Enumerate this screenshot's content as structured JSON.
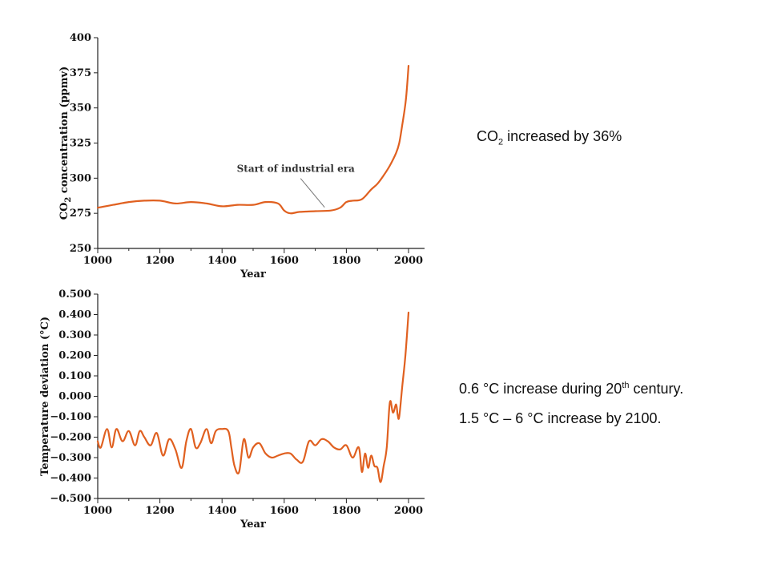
{
  "chart_data": [
    {
      "type": "line",
      "xlabel": "Year",
      "ylabel_main": "CO",
      "ylabel_sub": "2",
      "ylabel_rest": " concentration (ppmv)",
      "xlim": [
        1000,
        2000
      ],
      "ylim": [
        250,
        400
      ],
      "x_ticks": [
        1000,
        1200,
        1400,
        1600,
        1800,
        2000
      ],
      "y_ticks": [
        250,
        275,
        300,
        325,
        350,
        375,
        400
      ],
      "annotation": {
        "text": "Start of industrial era",
        "x": 1730,
        "y": 277
      },
      "series": [
        {
          "x": [
            1000,
            1050,
            1100,
            1150,
            1200,
            1250,
            1300,
            1350,
            1400,
            1450,
            1500,
            1540,
            1580,
            1600,
            1620,
            1650,
            1700,
            1750,
            1780,
            1800,
            1820,
            1850,
            1880,
            1900,
            1920,
            1940,
            1960,
            1970,
            1980,
            1990,
            1995,
            2000
          ],
          "y": [
            279,
            281,
            283,
            284,
            284,
            282,
            283,
            282,
            280,
            281,
            281,
            283,
            282,
            277,
            275,
            276,
            276.5,
            277,
            279,
            283,
            284,
            285,
            292,
            296,
            302,
            309,
            318,
            325,
            338,
            353,
            365,
            380
          ]
        }
      ]
    },
    {
      "type": "line",
      "xlabel": "Year",
      "ylabel": "Temperature deviation (°C)",
      "xlim": [
        1000,
        2000
      ],
      "ylim": [
        -0.5,
        0.5
      ],
      "x_ticks": [
        1000,
        1200,
        1400,
        1600,
        1800,
        2000
      ],
      "y_ticks": [
        0.5,
        0.4,
        0.3,
        0.2,
        0.1,
        0.0,
        -0.1,
        -0.2,
        -0.3,
        -0.4,
        -0.5
      ],
      "y_tick_labels": [
        "0.500",
        "0.400",
        "0.300",
        "0.200",
        "0.100",
        "0.000",
        "−0.100",
        "−0.200",
        "−0.300",
        "−0.400",
        "−0.500"
      ],
      "series": [
        {
          "x": [
            1000,
            1010,
            1030,
            1045,
            1060,
            1080,
            1100,
            1120,
            1135,
            1150,
            1170,
            1190,
            1210,
            1230,
            1250,
            1270,
            1285,
            1300,
            1315,
            1330,
            1350,
            1365,
            1380,
            1400,
            1420,
            1430,
            1440,
            1455,
            1470,
            1485,
            1500,
            1520,
            1540,
            1560,
            1580,
            1600,
            1620,
            1640,
            1660,
            1680,
            1700,
            1720,
            1740,
            1760,
            1780,
            1800,
            1820,
            1840,
            1850,
            1860,
            1870,
            1880,
            1890,
            1900,
            1910,
            1920,
            1930,
            1940,
            1950,
            1960,
            1965,
            1970,
            1980,
            1990,
            2000
          ],
          "y": [
            -0.22,
            -0.25,
            -0.16,
            -0.25,
            -0.16,
            -0.22,
            -0.17,
            -0.24,
            -0.17,
            -0.2,
            -0.24,
            -0.18,
            -0.29,
            -0.21,
            -0.26,
            -0.35,
            -0.22,
            -0.16,
            -0.25,
            -0.23,
            -0.16,
            -0.23,
            -0.17,
            -0.16,
            -0.17,
            -0.25,
            -0.34,
            -0.37,
            -0.21,
            -0.3,
            -0.25,
            -0.23,
            -0.28,
            -0.3,
            -0.29,
            -0.28,
            -0.28,
            -0.31,
            -0.32,
            -0.22,
            -0.24,
            -0.21,
            -0.22,
            -0.25,
            -0.26,
            -0.24,
            -0.3,
            -0.25,
            -0.37,
            -0.28,
            -0.35,
            -0.29,
            -0.34,
            -0.35,
            -0.42,
            -0.34,
            -0.25,
            -0.03,
            -0.08,
            -0.04,
            -0.09,
            -0.1,
            0.05,
            0.2,
            0.41
          ]
        }
      ]
    }
  ],
  "notes": {
    "co2_prefix": "CO",
    "co2_sub": "2",
    "co2_rest": " increased by 36%",
    "temp1_prefix": "0.6 °C  increase during 20",
    "temp1_sup": "th",
    "temp1_rest": " century.",
    "temp2": "1.5 °C – 6 °C increase by 2100."
  }
}
